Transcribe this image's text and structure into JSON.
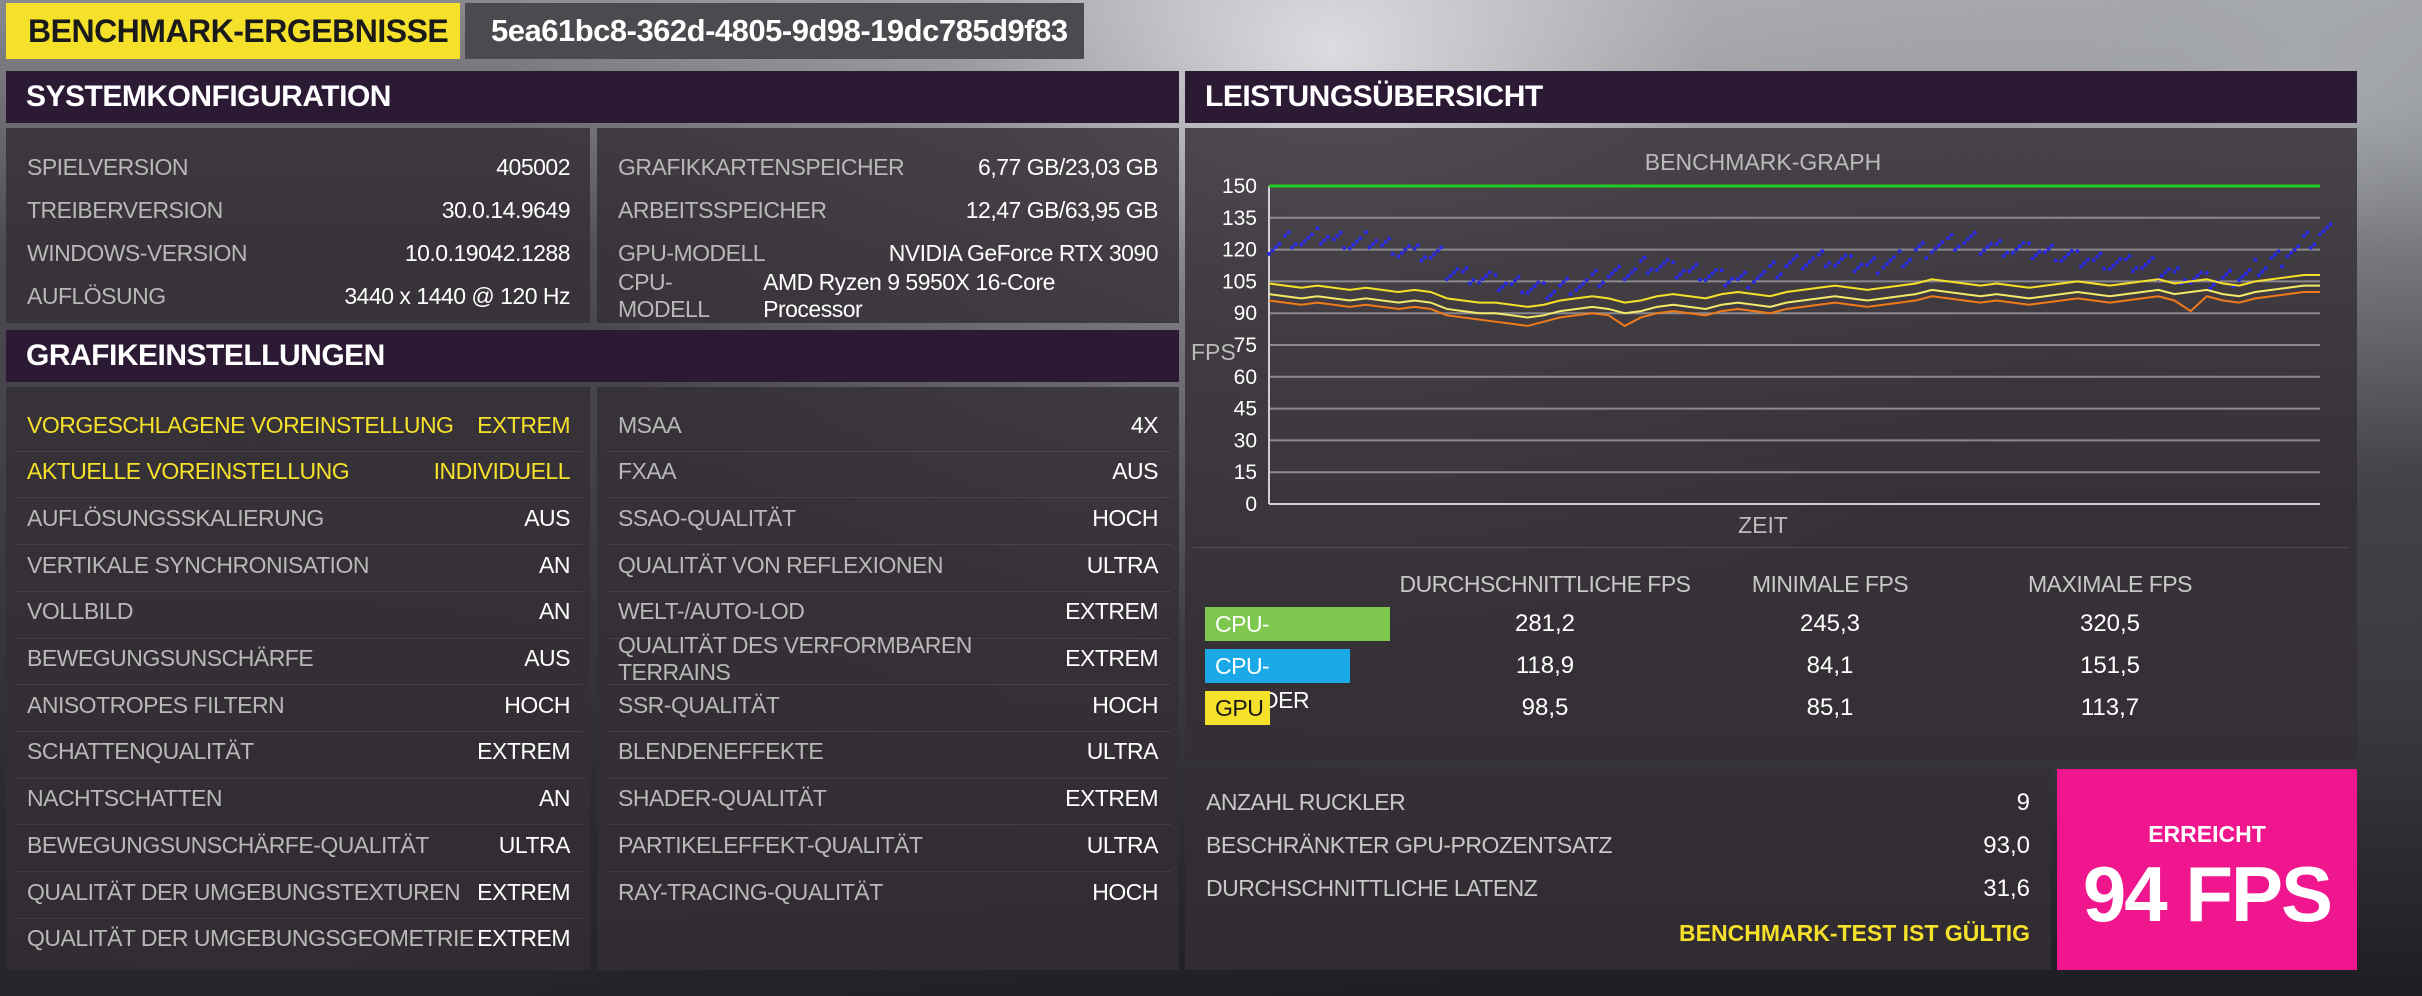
{
  "header": {
    "title": "BENCHMARK-ERGEBNISSE",
    "run_id": "5ea61bc8-362d-4805-9d98-19dc785d9f83"
  },
  "system": {
    "title": "SYSTEMKONFIGURATION",
    "left": [
      {
        "key": "SPIELVERSION",
        "value": "405002"
      },
      {
        "key": "TREIBERVERSION",
        "value": "30.0.14.9649"
      },
      {
        "key": "WINDOWS-VERSION",
        "value": "10.0.19042.1288"
      },
      {
        "key": "AUFLÖSUNG",
        "value": "3440 x 1440 @ 120 Hz"
      }
    ],
    "right": [
      {
        "key": "GRAFIKKARTENSPEICHER",
        "value": "6,77 GB/23,03 GB"
      },
      {
        "key": "ARBEITSSPEICHER",
        "value": "12,47 GB/63,95 GB"
      },
      {
        "key": "GPU-MODELL",
        "value": "NVIDIA GeForce RTX 3090"
      },
      {
        "key": "CPU-MODELL",
        "value": "AMD Ryzen 9 5950X 16-Core Processor"
      }
    ]
  },
  "graphics": {
    "title": "GRAFIKEINSTELLUNGEN",
    "left": [
      {
        "key": "VORGESCHLAGENE VOREINSTELLUNG",
        "value": "EXTREM",
        "highlight": true
      },
      {
        "key": "AKTUELLE VOREINSTELLUNG",
        "value": "INDIVIDUELL",
        "highlight": true
      },
      {
        "key": "AUFLÖSUNGSSKALIERUNG",
        "value": "AUS"
      },
      {
        "key": "VERTIKALE SYNCHRONISATION",
        "value": "AN"
      },
      {
        "key": "VOLLBILD",
        "value": "AN"
      },
      {
        "key": "BEWEGUNGSUNSCHÄRFE",
        "value": "AUS"
      },
      {
        "key": "ANISOTROPES FILTERN",
        "value": "HOCH"
      },
      {
        "key": "SCHATTENQUALITÄT",
        "value": "EXTREM"
      },
      {
        "key": "NACHTSCHATTEN",
        "value": "AN"
      },
      {
        "key": "BEWEGUNGSUNSCHÄRFE-QUALITÄT",
        "value": "ULTRA"
      },
      {
        "key": "QUALITÄT DER UMGEBUNGSTEXTUREN",
        "value": "EXTREM"
      },
      {
        "key": "QUALITÄT DER UMGEBUNGSGEOMETRIE",
        "value": "EXTREM"
      }
    ],
    "right": [
      {
        "key": "MSAA",
        "value": "4X"
      },
      {
        "key": "FXAA",
        "value": "AUS"
      },
      {
        "key": "SSAO-QUALITÄT",
        "value": "HOCH"
      },
      {
        "key": "QUALITÄT VON REFLEXIONEN",
        "value": "ULTRA"
      },
      {
        "key": "WELT-/AUTO-LOD",
        "value": "EXTREM"
      },
      {
        "key": "QUALITÄT DES VERFORMBAREN TERRAINS",
        "value": "EXTREM"
      },
      {
        "key": "SSR-QUALITÄT",
        "value": "HOCH"
      },
      {
        "key": "BLENDENEFFEKTE",
        "value": "ULTRA"
      },
      {
        "key": "SHADER-QUALITÄT",
        "value": "EXTREM"
      },
      {
        "key": "PARTIKELEFFEKT-QUALITÄT",
        "value": "ULTRA"
      },
      {
        "key": "RAY-TRACING-QUALITÄT",
        "value": "HOCH"
      }
    ]
  },
  "performance": {
    "title": "LEISTUNGSÜBERSICHT",
    "stat_headers": [
      "DURCHSCHNITTLICHE FPS",
      "MINIMALE FPS",
      "MAXIMALE FPS"
    ],
    "stats": [
      {
        "label": "CPU-SIMULATION",
        "color": "#7ec850",
        "avg": "281,2",
        "min": "245,3",
        "max": "320,5"
      },
      {
        "label": "CPU-RENDER",
        "color": "#1aa9e6",
        "avg": "118,9",
        "min": "84,1",
        "max": "151,5"
      },
      {
        "label": "GPU",
        "color": "#f5e02a",
        "avg": "98,5",
        "min": "85,1",
        "max": "113,7"
      }
    ],
    "bottom": [
      {
        "key": "ANZAHL RUCKLER",
        "value": "9"
      },
      {
        "key": "BESCHRÄNKTER GPU-PROZENTSATZ",
        "value": "93,0"
      },
      {
        "key": "DURCHSCHNITTLICHE LATENZ",
        "value": "31,6"
      }
    ],
    "valid_text": "BENCHMARK-TEST IST GÜLTIG",
    "result_label": "ERREICHT",
    "result_value": "94 FPS"
  },
  "chart_data": {
    "type": "line",
    "title": "BENCHMARK-GRAPH",
    "xlabel": "ZEIT",
    "ylabel": "FPS",
    "ylim": [
      0,
      150
    ],
    "yticks": [
      "150",
      "135",
      "120",
      "105",
      "90",
      "75",
      "60",
      "45",
      "30",
      "15",
      "0"
    ],
    "grid": true,
    "series": [
      {
        "color": "#22cc22",
        "values": [
          150,
          150
        ]
      },
      {
        "color": "#2a2ae0",
        "style": "scatter",
        "values": [
          122,
          125,
          124,
          126,
          124,
          123,
          125,
          122,
          120,
          118,
          117,
          110,
          108,
          106,
          104,
          103,
          102,
          101,
          103,
          104,
          106,
          108,
          110,
          113,
          112,
          110,
          109,
          108,
          107,
          106,
          108,
          110,
          113,
          115,
          116,
          114,
          113,
          112,
          114,
          116,
          120,
          122,
          123,
          124,
          122,
          121,
          120,
          119,
          118,
          117,
          116,
          115,
          114,
          113,
          112,
          110,
          108,
          106,
          105,
          106,
          108,
          112,
          116,
          120,
          124,
          128
        ]
      },
      {
        "color": "#f5e02a",
        "values": [
          104,
          103,
          102,
          103,
          102,
          101,
          102,
          101,
          100,
          101,
          100,
          97,
          96,
          95,
          95,
          94,
          93,
          94,
          96,
          97,
          98,
          97,
          95,
          96,
          98,
          99,
          98,
          97,
          99,
          100,
          99,
          98,
          100,
          101,
          102,
          103,
          102,
          101,
          102,
          103,
          104,
          106,
          105,
          104,
          103,
          104,
          103,
          102,
          103,
          104,
          105,
          104,
          103,
          104,
          105,
          106,
          104,
          105,
          106,
          104,
          103,
          105,
          106,
          107,
          108,
          108
        ]
      },
      {
        "color": "#f4ea6a",
        "values": [
          99,
          98,
          97,
          98,
          97,
          96,
          97,
          96,
          95,
          96,
          95,
          92,
          91,
          90,
          90,
          89,
          88,
          89,
          91,
          92,
          93,
          92,
          90,
          91,
          93,
          94,
          93,
          92,
          94,
          95,
          94,
          93,
          95,
          96,
          97,
          98,
          97,
          96,
          97,
          98,
          99,
          101,
          100,
          99,
          98,
          99,
          98,
          97,
          98,
          99,
          100,
          99,
          98,
          99,
          100,
          101,
          99,
          100,
          101,
          99,
          98,
          100,
          101,
          102,
          103,
          103
        ]
      },
      {
        "color": "#f07a1a",
        "values": [
          96,
          95,
          94,
          95,
          94,
          93,
          94,
          93,
          92,
          93,
          92,
          89,
          88,
          87,
          86,
          85,
          84,
          86,
          88,
          89,
          90,
          89,
          84,
          88,
          90,
          91,
          90,
          89,
          91,
          92,
          91,
          90,
          92,
          93,
          94,
          95,
          94,
          93,
          94,
          95,
          96,
          98,
          97,
          96,
          95,
          96,
          95,
          94,
          95,
          96,
          97,
          96,
          95,
          96,
          97,
          98,
          96,
          91,
          98,
          96,
          95,
          97,
          98,
          99,
          100,
          100
        ]
      }
    ]
  }
}
